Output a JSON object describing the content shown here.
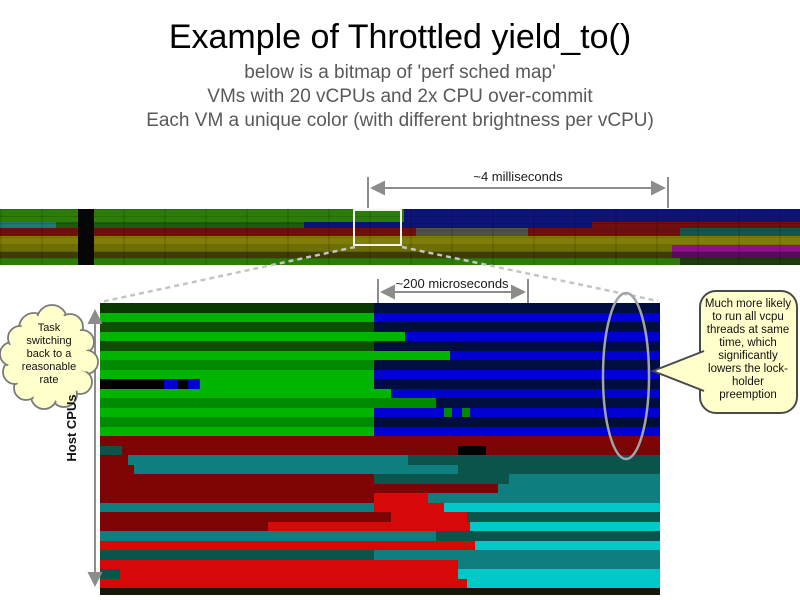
{
  "slide": {
    "title": "Example of Throttled yield_to()",
    "subtitle_lines": [
      "below is a bitmap of 'perf sched map'",
      "VMs with 20 vCPUs and 2x CPU over-commit",
      "Each VM a unique color (with different brightness per vCPU)"
    ]
  },
  "annotations": {
    "top_span_label": "~4 milliseconds",
    "zoom_span_label": "~200 microseconds",
    "y_axis_label": "Host CPUs",
    "left_callout_text": "Task switching back to a reasonable rate",
    "right_callout_text": "Much more likely to run all vcpu threads at same time, which significantly lowers the lock-holder preemption"
  },
  "colors": {
    "background": "#ffffff",
    "title_text": "#000000",
    "subtitle_text": "#595959",
    "annotation_arrow": "#8c8c8c",
    "dashed_trace": "#c4c4c4",
    "callout_fill": "#ffffcc",
    "callout_border": "#4a4a4a",
    "cloud_border": "#7a7a7a",
    "ellipse_stroke": "#a3a3ab",
    "highlight_box_border": "#f2f2f2"
  },
  "chart_data": {
    "type": "heatmap",
    "title": "perf sched map bitmap",
    "y_axis": "Host CPUs",
    "overview_span": "~4 milliseconds",
    "zoom_span": "~200 microseconds",
    "palette": {
      "OG": "#2b7c08",
      "OG2": "#1d5c10",
      "OG3": "#153f05",
      "NV": "#0c1478",
      "OT": "#1f7a6e",
      "OT2": "#12564e",
      "OM": "#6e1010",
      "OGY": "#50504a",
      "OO": "#7e7e08",
      "OO2": "#6e6e06",
      "OO3": "#3c3c04",
      "OP": "#8a128a",
      "OP2": "#5c0a5c",
      "G1": "#00b400",
      "G2": "#008a00",
      "G3": "#0f4d00",
      "G4": "#083800",
      "B1": "#0000d2",
      "B2": "#000d3f",
      "BK": "#000000",
      "M": "#7c0404",
      "R": "#d60808",
      "T": "#0e7e7e",
      "T2": "#0b544c",
      "C": "#00c8c8",
      "DK": "#15170a"
    },
    "overview_strip": {
      "rows": [
        {
          "h": 13,
          "segs": [
            [
              "OG",
              0.505
            ],
            [
              "NV",
              0.495
            ]
          ]
        },
        {
          "h": 6,
          "segs": [
            [
              "OT",
              0.07
            ],
            [
              "OG2",
              0.31
            ],
            [
              "NV",
              0.36
            ],
            [
              "OM",
              0.26
            ]
          ]
        },
        {
          "h": 8,
          "segs": [
            [
              "OM",
              0.52
            ],
            [
              "OGY",
              0.14
            ],
            [
              "OM",
              0.19
            ],
            [
              "OT2",
              0.15
            ]
          ]
        },
        {
          "h": 8,
          "segs": [
            [
              "OO",
              1.0
            ]
          ]
        },
        {
          "h": 7,
          "segs": [
            [
              "OO2",
              0.84
            ],
            [
              "OP",
              0.16
            ]
          ]
        },
        {
          "h": 6,
          "segs": [
            [
              "OO3",
              0.84
            ],
            [
              "OP2",
              0.16
            ]
          ]
        },
        {
          "h": 7,
          "segs": [
            [
              "OG",
              0.85
            ],
            [
              "OG3",
              0.15
            ]
          ]
        }
      ]
    },
    "zoomed_bitmap": {
      "rows": [
        {
          "h": 9.5,
          "segs": [
            [
              "G4",
              0.49
            ],
            [
              "B2",
              0.51
            ]
          ]
        },
        {
          "h": 9.5,
          "segs": [
            [
              "G1",
              0.49
            ],
            [
              "B1",
              0.51
            ]
          ]
        },
        {
          "h": 9.5,
          "segs": [
            [
              "G3",
              0.49
            ],
            [
              "B2",
              0.51
            ]
          ]
        },
        {
          "h": 9.5,
          "segs": [
            [
              "G1",
              0.545
            ],
            [
              "B1",
              0.455
            ]
          ]
        },
        {
          "h": 9.5,
          "segs": [
            [
              "G3",
              0.49
            ],
            [
              "B2",
              0.51
            ]
          ]
        },
        {
          "h": 9.5,
          "segs": [
            [
              "G1",
              0.625
            ],
            [
              "B1",
              0.375
            ]
          ]
        },
        {
          "h": 9.5,
          "segs": [
            [
              "G2",
              0.49
            ],
            [
              "B2",
              0.51
            ]
          ]
        },
        {
          "h": 9.5,
          "segs": [
            [
              "G1",
              0.49
            ],
            [
              "B1",
              0.51
            ]
          ]
        },
        {
          "h": 9.5,
          "segs": [
            [
              "BK",
              0.115
            ],
            [
              "B1",
              0.022
            ],
            [
              "BK",
              0.02
            ],
            [
              "B1",
              0.022
            ],
            [
              "G1",
              0.311
            ],
            [
              "B2",
              0.51
            ]
          ]
        },
        {
          "h": 9.5,
          "segs": [
            [
              "G1",
              0.52
            ],
            [
              "B1",
              0.48
            ]
          ]
        },
        {
          "h": 9.5,
          "segs": [
            [
              "G2",
              0.6
            ],
            [
              "B2",
              0.4
            ]
          ]
        },
        {
          "h": 9.5,
          "segs": [
            [
              "G1",
              0.49
            ],
            [
              "B1",
              0.125
            ],
            [
              "G2",
              0.014
            ],
            [
              "B1",
              0.018
            ],
            [
              "G2",
              0.014
            ],
            [
              "B1",
              0.339
            ]
          ]
        },
        {
          "h": 9.5,
          "segs": [
            [
              "G2",
              0.49
            ],
            [
              "B2",
              0.51
            ]
          ]
        },
        {
          "h": 9.5,
          "segs": [
            [
              "G1",
              0.49
            ],
            [
              "B1",
              0.51
            ]
          ]
        },
        {
          "h": 9.5,
          "segs": [
            [
              "M",
              1.0
            ]
          ]
        },
        {
          "h": 9.5,
          "segs": [
            [
              "T2",
              0.04
            ],
            [
              "M",
              0.6
            ],
            [
              "BK",
              0.05
            ],
            [
              "M",
              0.31
            ]
          ]
        },
        {
          "h": 9.5,
          "segs": [
            [
              "M",
              0.05
            ],
            [
              "T",
              0.5
            ],
            [
              "T2",
              0.45
            ]
          ]
        },
        {
          "h": 9.5,
          "segs": [
            [
              "M",
              0.06
            ],
            [
              "T",
              0.58
            ],
            [
              "T2",
              0.36
            ]
          ]
        },
        {
          "h": 9.5,
          "segs": [
            [
              "M",
              0.49
            ],
            [
              "T2",
              0.24
            ],
            [
              "T",
              0.27
            ]
          ]
        },
        {
          "h": 9.5,
          "segs": [
            [
              "M",
              0.71
            ],
            [
              "T",
              0.29
            ]
          ]
        },
        {
          "h": 9.5,
          "segs": [
            [
              "M",
              0.49
            ],
            [
              "R",
              0.095
            ],
            [
              "T",
              0.415
            ]
          ]
        },
        {
          "h": 9.5,
          "segs": [
            [
              "T",
              0.49
            ],
            [
              "R",
              0.125
            ],
            [
              "C",
              0.385
            ]
          ]
        },
        {
          "h": 9.5,
          "segs": [
            [
              "M",
              0.52
            ],
            [
              "R",
              0.135
            ],
            [
              "T2",
              0.345
            ]
          ]
        },
        {
          "h": 9.5,
          "segs": [
            [
              "M",
              0.3
            ],
            [
              "R",
              0.36
            ],
            [
              "C",
              0.34
            ]
          ]
        },
        {
          "h": 9.5,
          "segs": [
            [
              "T",
              0.6
            ],
            [
              "T2",
              0.4
            ]
          ]
        },
        {
          "h": 9.5,
          "segs": [
            [
              "R",
              0.67
            ],
            [
              "C",
              0.33
            ]
          ]
        },
        {
          "h": 9.5,
          "segs": [
            [
              "T2",
              0.49
            ],
            [
              "T",
              0.51
            ]
          ]
        },
        {
          "h": 9.5,
          "segs": [
            [
              "R",
              0.64
            ],
            [
              "T",
              0.36
            ]
          ]
        },
        {
          "h": 9.5,
          "segs": [
            [
              "T2",
              0.035
            ],
            [
              "R",
              0.605
            ],
            [
              "C",
              0.36
            ]
          ]
        },
        {
          "h": 9.5,
          "segs": [
            [
              "R",
              0.655
            ],
            [
              "C",
              0.345
            ]
          ]
        },
        {
          "h": 7,
          "segs": [
            [
              "DK",
              1.0
            ]
          ]
        }
      ]
    }
  }
}
